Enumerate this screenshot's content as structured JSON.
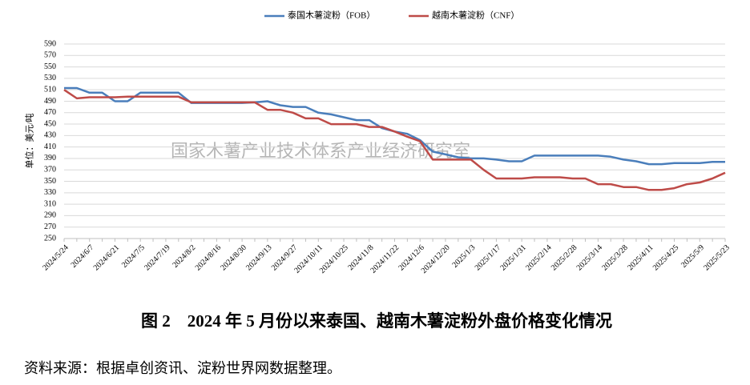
{
  "chart_data": {
    "type": "line",
    "y_label": "单位：美元/吨",
    "watermark": "国家木薯产业技术体系产业经济研究室",
    "caption": "图 2　2024 年 5 月份以来泰国、越南木薯淀粉外盘价格变化情况",
    "source": "资料来源：根据卓创资讯、淀粉世界网数据整理。",
    "categories": [
      "2024/5/24",
      null,
      "2024/6/7",
      null,
      "2024/6/21",
      null,
      "2024/7/5",
      null,
      "2024/7/19",
      null,
      "2024/8/2",
      null,
      "2024/8/16",
      null,
      "2024/8/30",
      null,
      "2024/9/13",
      null,
      "2024/9/27",
      null,
      "2024/10/11",
      null,
      "2024/10/25",
      null,
      "2024/11/8",
      null,
      "2024/11/22",
      null,
      "2024/12/6",
      null,
      "2024/12/20",
      null,
      "2025/1/3",
      null,
      "2025/1/17",
      null,
      "2025/1/31",
      null,
      "2025/2/14",
      null,
      "2025/2/28",
      null,
      "2025/3/14",
      null,
      "2025/3/28",
      null,
      "2025/4/11",
      null,
      "2025/4/25",
      null,
      "2025/5/9",
      null,
      "2025/5/23"
    ],
    "series": [
      {
        "name": "泰国木薯淀粉（FOB）",
        "color": "#4a7ebb",
        "values": [
          513,
          513,
          505,
          505,
          490,
          490,
          505,
          505,
          505,
          505,
          487,
          487,
          487,
          487,
          487,
          488,
          490,
          483,
          480,
          480,
          470,
          467,
          462,
          457,
          457,
          443,
          437,
          433,
          422,
          402,
          397,
          392,
          390,
          390,
          388,
          385,
          385,
          395,
          395,
          395,
          395,
          395,
          395,
          393,
          388,
          385,
          380,
          380,
          382,
          382,
          382,
          384,
          384
        ]
      },
      {
        "name": "越南木薯淀粉（CNF）",
        "color": "#be4b48",
        "values": [
          510,
          495,
          497,
          497,
          497,
          498,
          498,
          498,
          498,
          498,
          488,
          488,
          488,
          488,
          488,
          488,
          475,
          475,
          470,
          460,
          460,
          450,
          450,
          450,
          445,
          445,
          437,
          428,
          420,
          388,
          388,
          388,
          388,
          370,
          355,
          355,
          355,
          357,
          357,
          357,
          355,
          355,
          345,
          345,
          340,
          340,
          335,
          335,
          338,
          345,
          348,
          355,
          365
        ]
      }
    ],
    "ylim": [
      250,
      590
    ],
    "yticks": [
      250,
      270,
      290,
      310,
      330,
      350,
      370,
      390,
      410,
      430,
      450,
      470,
      490,
      510,
      530,
      550,
      570,
      590
    ],
    "grid": true,
    "legend": "top"
  }
}
